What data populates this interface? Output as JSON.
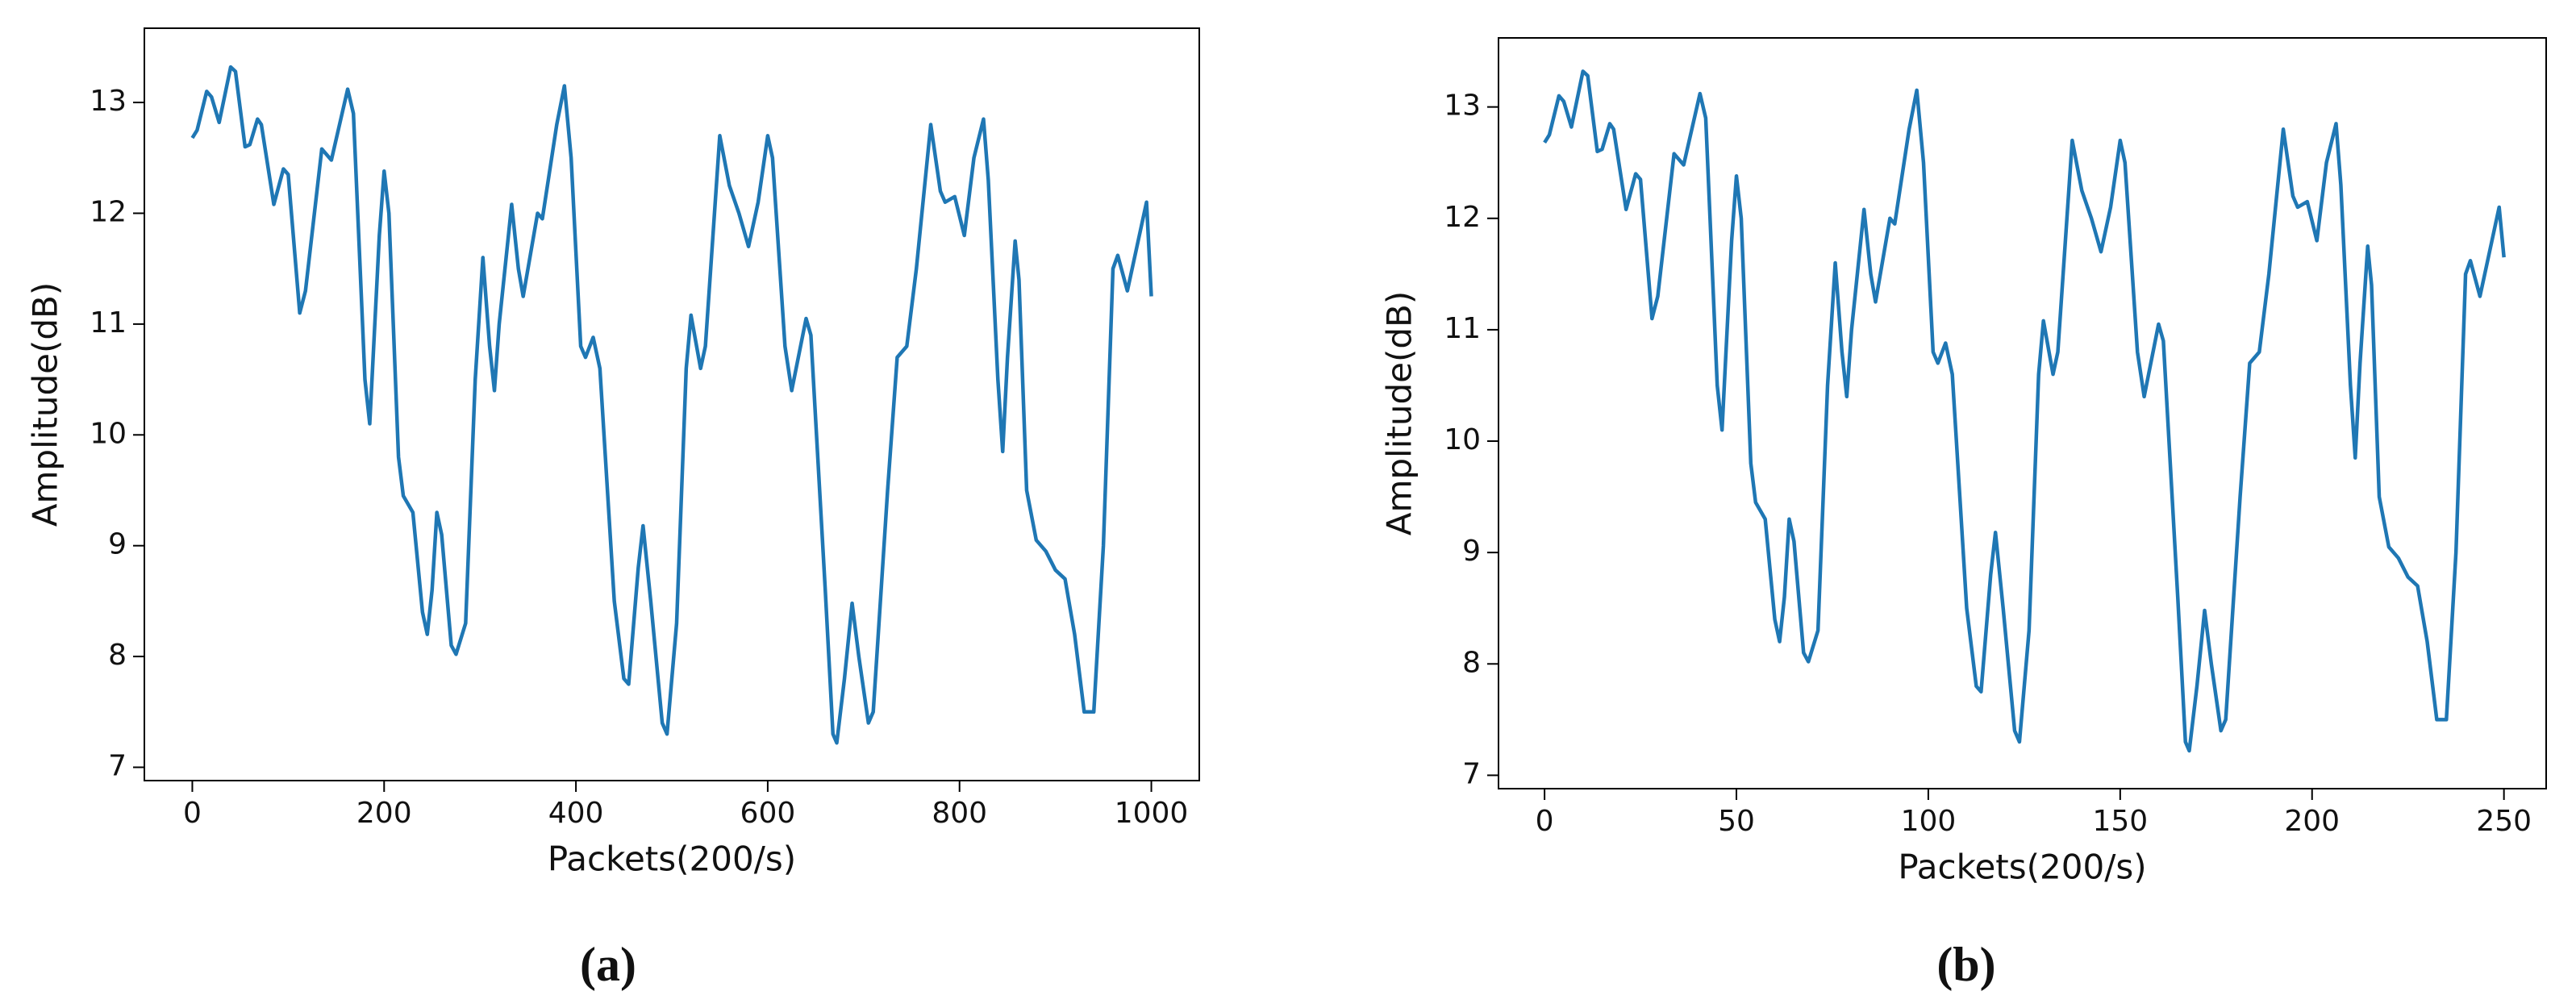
{
  "chart_data": [
    {
      "type": "line",
      "xlabel": "Packets(200/s)",
      "ylabel": "Amplitude(dB)",
      "caption": "(a)",
      "x": [
        0,
        5,
        15,
        20,
        28,
        40,
        45,
        55,
        60,
        68,
        72,
        85,
        95,
        100,
        112,
        118,
        135,
        145,
        162,
        168,
        180,
        185,
        195,
        200,
        205,
        215,
        220,
        230,
        240,
        245,
        250,
        255,
        260,
        270,
        275,
        285,
        295,
        303,
        310,
        315,
        320,
        333,
        340,
        345,
        360,
        365,
        380,
        388,
        395,
        405,
        410,
        418,
        425,
        440,
        450,
        455,
        465,
        470,
        478,
        490,
        495,
        505,
        515,
        520,
        530,
        535,
        550,
        560,
        570,
        580,
        590,
        600,
        605,
        618,
        625,
        640,
        645,
        660,
        668,
        672,
        680,
        688,
        695,
        705,
        710,
        725,
        735,
        745,
        755,
        770,
        780,
        785,
        795,
        805,
        815,
        825,
        830,
        840,
        845,
        850,
        858,
        862,
        870,
        880,
        890,
        900,
        910,
        920,
        930,
        940,
        950,
        960,
        965,
        975,
        985,
        995,
        1000
      ],
      "series": [
        {
          "color": "#1f77b4",
          "values": [
            12.68,
            12.75,
            13.1,
            13.05,
            12.82,
            13.32,
            13.28,
            12.6,
            12.62,
            12.85,
            12.8,
            12.08,
            12.4,
            12.35,
            11.1,
            11.3,
            12.58,
            12.48,
            13.12,
            12.9,
            10.5,
            10.1,
            11.8,
            12.38,
            12.0,
            9.8,
            9.45,
            9.3,
            8.4,
            8.2,
            8.6,
            9.3,
            9.1,
            8.1,
            8.02,
            8.3,
            10.5,
            11.6,
            10.8,
            10.4,
            11.0,
            12.08,
            11.5,
            11.25,
            12.0,
            11.95,
            12.8,
            13.15,
            12.5,
            10.8,
            10.7,
            10.88,
            10.6,
            8.5,
            7.8,
            7.75,
            8.8,
            9.18,
            8.5,
            7.4,
            7.3,
            8.3,
            10.6,
            11.08,
            10.6,
            10.8,
            12.7,
            12.25,
            12.0,
            11.7,
            12.1,
            12.7,
            12.5,
            10.8,
            10.4,
            11.05,
            10.9,
            8.6,
            7.3,
            7.22,
            7.8,
            8.48,
            8.0,
            7.4,
            7.5,
            9.5,
            10.7,
            10.8,
            11.5,
            12.8,
            12.2,
            12.1,
            12.15,
            11.8,
            12.5,
            12.85,
            12.3,
            10.5,
            9.85,
            10.7,
            11.75,
            11.4,
            9.5,
            9.05,
            8.95,
            8.78,
            8.7,
            8.2,
            7.5,
            7.5,
            9.0,
            11.5,
            11.62,
            11.3,
            11.7,
            12.1,
            11.25
          ]
        }
      ],
      "xlim": [
        -50,
        1050
      ],
      "xticks": [
        0,
        200,
        400,
        600,
        800,
        1000
      ],
      "ylim": [
        6.88,
        13.67
      ],
      "yticks": [
        7,
        8,
        9,
        10,
        11,
        12,
        13
      ]
    },
    {
      "type": "line",
      "xlabel": "Packets(200/s)",
      "ylabel": "Amplitude(dB)",
      "caption": "(b)",
      "x": [
        0,
        1.25,
        3.75,
        5,
        7,
        10,
        11.25,
        13.75,
        15,
        17,
        18,
        21.25,
        23.75,
        25,
        28,
        29.5,
        33.75,
        36.25,
        40.5,
        42,
        45,
        46.25,
        48.75,
        50,
        51.25,
        53.75,
        55,
        57.5,
        60,
        61.25,
        62.5,
        63.75,
        65,
        67.5,
        68.75,
        71.25,
        73.75,
        75.75,
        77.5,
        78.75,
        80,
        83.25,
        85,
        86.25,
        90,
        91.25,
        95,
        97,
        98.75,
        101.25,
        102.5,
        104.5,
        106.25,
        110,
        112.5,
        113.75,
        116.25,
        117.5,
        119.5,
        122.5,
        123.75,
        126.25,
        128.75,
        130,
        132.5,
        133.75,
        137.5,
        140,
        142.5,
        145,
        147.5,
        150,
        151.25,
        154.5,
        156.25,
        160,
        161.25,
        165,
        167,
        168,
        170,
        172,
        173.75,
        176.25,
        177.5,
        181.25,
        183.75,
        186.25,
        188.75,
        192.5,
        195,
        196.25,
        198.75,
        201.25,
        203.75,
        206.25,
        207.5,
        210,
        211.25,
        212.5,
        214.5,
        215.5,
        217.5,
        220,
        222.5,
        225,
        227.5,
        230,
        232.5,
        235,
        237.5,
        240,
        241.25,
        243.75,
        246.25,
        248.75,
        250
      ],
      "series": [
        {
          "color": "#1f77b4",
          "values": [
            12.68,
            12.75,
            13.1,
            13.05,
            12.82,
            13.32,
            13.28,
            12.6,
            12.62,
            12.85,
            12.8,
            12.08,
            12.4,
            12.35,
            11.1,
            11.3,
            12.58,
            12.48,
            13.12,
            12.9,
            10.5,
            10.1,
            11.8,
            12.38,
            12.0,
            9.8,
            9.45,
            9.3,
            8.4,
            8.2,
            8.6,
            9.3,
            9.1,
            8.1,
            8.02,
            8.3,
            10.5,
            11.6,
            10.8,
            10.4,
            11.0,
            12.08,
            11.5,
            11.25,
            12.0,
            11.95,
            12.8,
            13.15,
            12.5,
            10.8,
            10.7,
            10.88,
            10.6,
            8.5,
            7.8,
            7.75,
            8.8,
            9.18,
            8.5,
            7.4,
            7.3,
            8.3,
            10.6,
            11.08,
            10.6,
            10.8,
            12.7,
            12.25,
            12.0,
            11.7,
            12.1,
            12.7,
            12.5,
            10.8,
            10.4,
            11.05,
            10.9,
            8.6,
            7.3,
            7.22,
            7.8,
            8.48,
            8.0,
            7.4,
            7.5,
            9.5,
            10.7,
            10.8,
            11.5,
            12.8,
            12.2,
            12.1,
            12.15,
            11.8,
            12.5,
            12.85,
            12.3,
            10.5,
            9.85,
            10.7,
            11.75,
            11.4,
            9.5,
            9.05,
            8.95,
            8.78,
            8.7,
            8.2,
            7.5,
            7.5,
            9.0,
            11.5,
            11.62,
            11.3,
            11.7,
            12.1,
            11.65
          ]
        }
      ],
      "xlim": [
        -12,
        261
      ],
      "xticks": [
        0,
        50,
        100,
        150,
        200,
        250
      ],
      "ylim": [
        6.88,
        13.62
      ],
      "yticks": [
        7,
        8,
        9,
        10,
        11,
        12,
        13
      ]
    }
  ]
}
